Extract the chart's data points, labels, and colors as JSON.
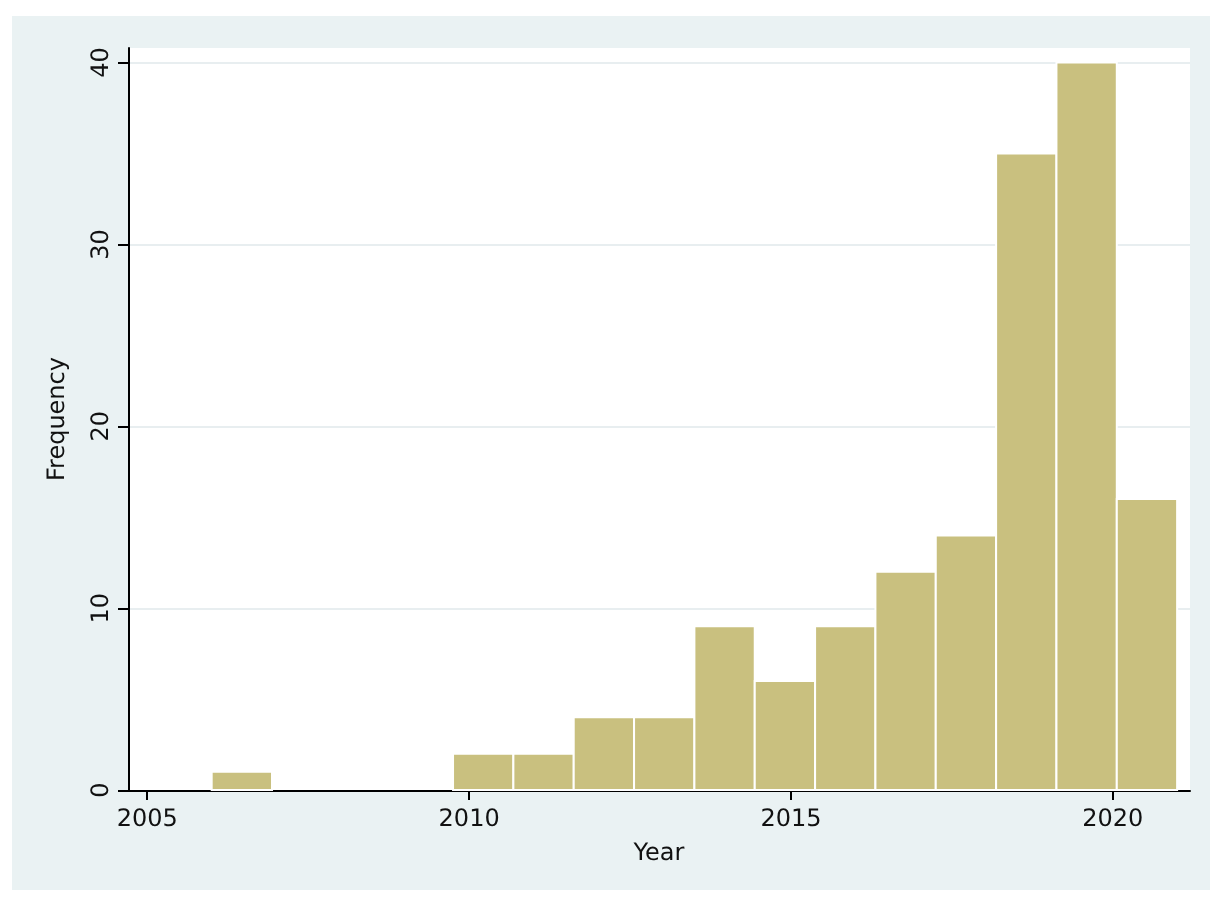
{
  "chart_data": {
    "type": "histogram",
    "xlabel": "Year",
    "ylabel": "Frequency",
    "bins": [
      2006,
      2006.9375,
      2007.875,
      2008.8125,
      2009.75,
      2010.6875,
      2011.625,
      2012.5625,
      2013.5,
      2014.4375,
      2015.375,
      2016.3125,
      2017.25,
      2018.1875,
      2019.125,
      2020.0625,
      2021
    ],
    "values": [
      1,
      0,
      0,
      0,
      2,
      2,
      4,
      4,
      9,
      6,
      9,
      12,
      14,
      35,
      40,
      16
    ],
    "color": "#c9c07f",
    "xlim": [
      2004.7,
      2021.2
    ],
    "xticks": [
      2005,
      2010,
      2015,
      2020
    ],
    "ylim": [
      0,
      40.8
    ],
    "yticks": [
      0,
      10,
      20,
      30,
      40
    ],
    "grid": "y"
  }
}
